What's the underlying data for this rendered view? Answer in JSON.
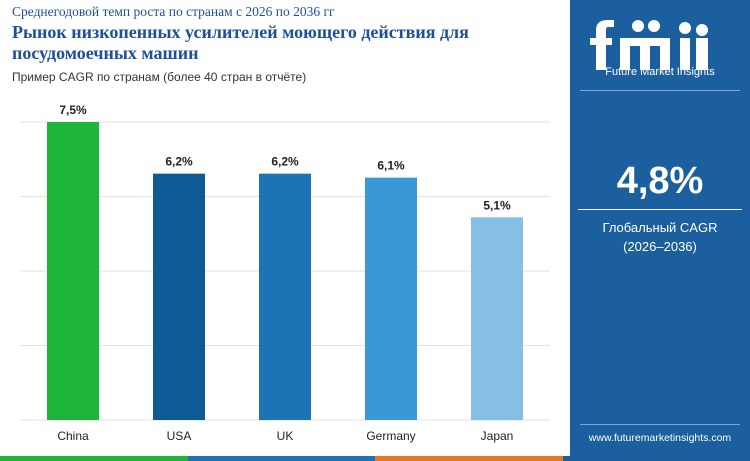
{
  "header": {
    "subtitle": "Среднегодовой темп роста по странам с 2026 по 2036 гг",
    "title": "Рынок низкопенных усилителей моющего действия для посудомоечных машин",
    "note": "Пример CAGR по странам (более 40 стран в отчёте)"
  },
  "chart_data": {
    "type": "bar",
    "categories": [
      "China",
      "USA",
      "UK",
      "Germany",
      "Japan"
    ],
    "values": [
      7.5,
      6.2,
      6.2,
      6.1,
      5.1
    ],
    "labels": [
      "7,5%",
      "6,2%",
      "6,2%",
      "6,1%",
      "5,1%"
    ],
    "colors": [
      "#1db53a",
      "#0d5a94",
      "#1d74b4",
      "#3b97d8",
      "#85bfe6"
    ],
    "ylim": [
      0,
      7.5
    ],
    "title": "",
    "xlabel": "",
    "ylabel": "",
    "grid": true,
    "legend": "none"
  },
  "sidebar": {
    "logo_text": "Future Market Insights",
    "cagr_value": "4,8%",
    "cagr_label_line1": "Глобальный CAGR",
    "cagr_label_line2": "(2026–2036)",
    "website": "www.futuremarketinsights.com",
    "bg_color": "#1b5f9e"
  },
  "strip_colors": [
    "#1db53a",
    "#1d74b4",
    "#e87722",
    "#1b5f9e"
  ]
}
